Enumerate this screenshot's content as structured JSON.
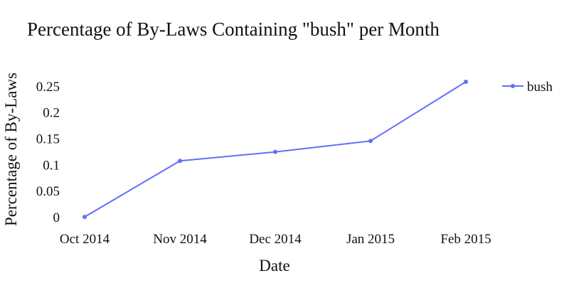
{
  "chart_data": {
    "type": "line",
    "title": "Percentage of By-Laws Containing \"bush\" per Month",
    "xlabel": "Date",
    "ylabel": "Percentage of By-Laws",
    "categories": [
      "Oct 2014",
      "Nov 2014",
      "Dec 2014",
      "Jan 2015",
      "Feb 2015"
    ],
    "series": [
      {
        "name": "bush",
        "values": [
          0.0,
          0.107,
          0.124,
          0.145,
          0.258
        ],
        "color": "#636efa"
      }
    ],
    "yticks": [
      0,
      0.05,
      0.1,
      0.15,
      0.2,
      0.25
    ],
    "ytick_labels": [
      "0",
      "0.05",
      "0.1",
      "0.15",
      "0.2",
      "0.25"
    ],
    "ylim": [
      0,
      0.258
    ],
    "grid": false,
    "legend": "top-right"
  }
}
